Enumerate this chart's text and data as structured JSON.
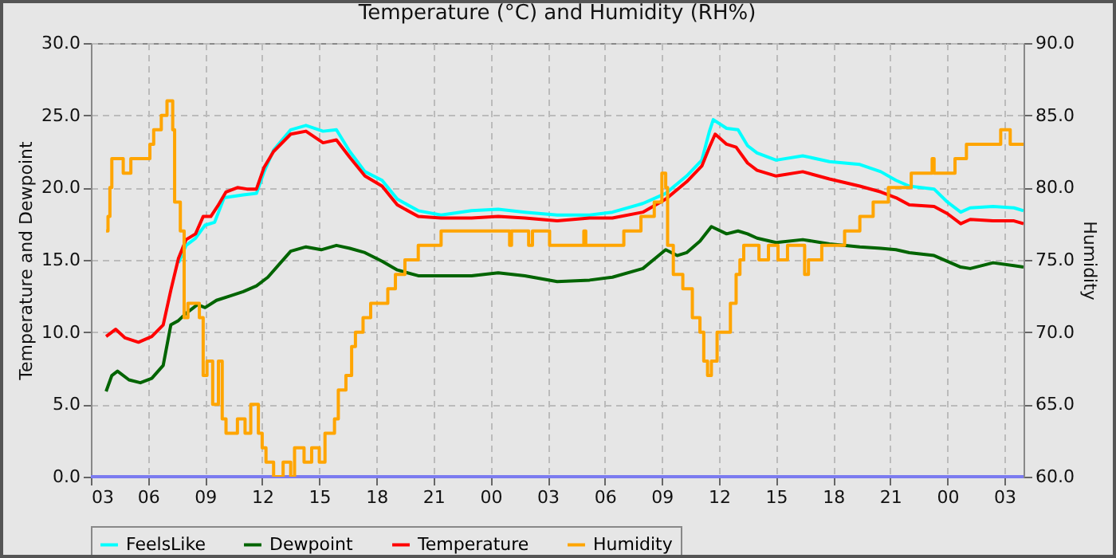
{
  "chart_data": {
    "type": "line",
    "title": "Temperature (°C) and Humidity (RH%)",
    "ylabel": "Temperature and Dewpoint",
    "y2label": "Humidity",
    "xlim": [
      3,
      52
    ],
    "xticks": [
      {
        "value": 3,
        "label": "03"
      },
      {
        "value": 6,
        "label": "06"
      },
      {
        "value": 9,
        "label": "09"
      },
      {
        "value": 12,
        "label": "12"
      },
      {
        "value": 15,
        "label": "15"
      },
      {
        "value": 18,
        "label": "18"
      },
      {
        "value": 21,
        "label": "21"
      },
      {
        "value": 24,
        "label": "00"
      },
      {
        "value": 27,
        "label": "03"
      },
      {
        "value": 30,
        "label": "06"
      },
      {
        "value": 33,
        "label": "09"
      },
      {
        "value": 36,
        "label": "12"
      },
      {
        "value": 39,
        "label": "15"
      },
      {
        "value": 42,
        "label": "18"
      },
      {
        "value": 45,
        "label": "21"
      },
      {
        "value": 48,
        "label": "00"
      },
      {
        "value": 51,
        "label": "03"
      }
    ],
    "ylim": [
      0,
      30
    ],
    "yticks": [
      {
        "value": 0,
        "label": "0.0"
      },
      {
        "value": 5,
        "label": "5.0"
      },
      {
        "value": 10,
        "label": "10.0"
      },
      {
        "value": 15,
        "label": "15.0"
      },
      {
        "value": 20,
        "label": "20.0"
      },
      {
        "value": 25,
        "label": "25.0"
      },
      {
        "value": 30,
        "label": "30.0"
      }
    ],
    "y2lim": [
      60,
      90
    ],
    "y2ticks": [
      {
        "value": 60,
        "label": "60.0"
      },
      {
        "value": 65,
        "label": "65.0"
      },
      {
        "value": 70,
        "label": "70.0"
      },
      {
        "value": 75,
        "label": "75.0"
      },
      {
        "value": 80,
        "label": "80.0"
      },
      {
        "value": 85,
        "label": "85.0"
      },
      {
        "value": 90,
        "label": "90.0"
      }
    ],
    "grid": true,
    "legend": "bottom",
    "marker": "none",
    "line_style": "solid",
    "ref_lines": [
      {
        "axis": "y",
        "value": 0,
        "color": "#7b7bf0"
      }
    ],
    "series": [
      {
        "name": "FeelsLike",
        "color": "#00ffff",
        "x": [
          7.6,
          8.0,
          8.5,
          9.0,
          9.5,
          10.0,
          11.0,
          11.7,
          12.1,
          12.6,
          13.5,
          14.3,
          15.2,
          15.9,
          16.6,
          17.4,
          18.3,
          19.1,
          20.2,
          21.4,
          23.0,
          24.4,
          25.8,
          27.5,
          29.2,
          30.4,
          32.0,
          33.2,
          34.3,
          35.1,
          35.5,
          35.7,
          36.4,
          37.0,
          37.5,
          38.0,
          39.0,
          40.4,
          41.8,
          43.4,
          44.5,
          45.3,
          46.0,
          47.3,
          48.0,
          48.7,
          49.2,
          50.4,
          51.5,
          52.0
        ],
        "values": [
          14.8,
          16.0,
          16.5,
          17.4,
          17.6,
          19.3,
          19.5,
          19.6,
          21.1,
          22.6,
          24.0,
          24.3,
          23.9,
          24.0,
          22.5,
          21.1,
          20.5,
          19.2,
          18.4,
          18.1,
          18.4,
          18.5,
          18.3,
          18.1,
          18.1,
          18.3,
          18.9,
          19.6,
          20.8,
          21.9,
          23.9,
          24.7,
          24.1,
          24.0,
          22.9,
          22.4,
          21.9,
          22.2,
          21.8,
          21.6,
          21.1,
          20.5,
          20.1,
          19.9,
          19.0,
          18.3,
          18.6,
          18.7,
          18.6,
          18.4
        ]
      },
      {
        "name": "Dewpoint",
        "color": "#006400",
        "x": [
          3.8,
          4.1,
          4.4,
          5.0,
          5.6,
          6.2,
          6.8,
          7.2,
          7.6,
          8.0,
          8.6,
          9.0,
          9.6,
          10.3,
          11.0,
          11.7,
          12.3,
          12.9,
          13.5,
          14.3,
          15.1,
          15.9,
          16.6,
          17.4,
          18.3,
          19.1,
          20.2,
          21.4,
          23.0,
          24.4,
          25.8,
          27.5,
          29.2,
          30.4,
          32.0,
          33.2,
          33.8,
          34.3,
          35.0,
          35.6,
          36.4,
          37.0,
          37.5,
          38.0,
          39.0,
          40.4,
          41.8,
          43.4,
          44.5,
          45.3,
          46.0,
          47.3,
          48.0,
          48.7,
          49.2,
          50.4,
          51.5,
          52.0
        ],
        "values": [
          5.9,
          7.0,
          7.3,
          6.7,
          6.5,
          6.8,
          7.7,
          10.5,
          10.8,
          11.3,
          11.9,
          11.7,
          12.2,
          12.5,
          12.8,
          13.2,
          13.8,
          14.7,
          15.6,
          15.9,
          15.7,
          16.0,
          15.8,
          15.5,
          14.9,
          14.3,
          13.9,
          13.9,
          13.9,
          14.1,
          13.9,
          13.5,
          13.6,
          13.8,
          14.4,
          15.7,
          15.3,
          15.5,
          16.3,
          17.3,
          16.8,
          17.0,
          16.8,
          16.5,
          16.2,
          16.4,
          16.1,
          15.9,
          15.8,
          15.7,
          15.5,
          15.3,
          14.9,
          14.5,
          14.4,
          14.8,
          14.6,
          14.5
        ]
      },
      {
        "name": "Temperature",
        "color": "#ff0000",
        "x": [
          3.8,
          4.3,
          4.8,
          5.5,
          6.2,
          6.8,
          7.2,
          7.6,
          8.0,
          8.5,
          8.9,
          9.3,
          9.7,
          10.1,
          10.7,
          11.2,
          11.7,
          12.1,
          12.6,
          13.5,
          14.3,
          15.2,
          15.9,
          16.6,
          17.4,
          18.3,
          19.1,
          20.2,
          21.4,
          23.0,
          24.4,
          25.8,
          27.5,
          29.2,
          30.4,
          32.0,
          33.2,
          34.3,
          35.1,
          35.5,
          35.8,
          36.4,
          36.9,
          37.5,
          38.0,
          39.0,
          40.4,
          41.8,
          43.4,
          44.5,
          45.3,
          46.0,
          47.3,
          48.0,
          48.7,
          49.2,
          50.4,
          51.5,
          52.0
        ],
        "values": [
          9.7,
          10.2,
          9.6,
          9.3,
          9.7,
          10.5,
          12.9,
          15.1,
          16.4,
          16.8,
          18.0,
          18.0,
          18.8,
          19.7,
          20.0,
          19.9,
          19.9,
          21.4,
          22.5,
          23.7,
          23.9,
          23.1,
          23.3,
          22.1,
          20.8,
          20.1,
          18.8,
          18.0,
          17.9,
          17.9,
          18.0,
          17.9,
          17.7,
          17.9,
          17.9,
          18.3,
          19.2,
          20.4,
          21.5,
          22.8,
          23.7,
          23.0,
          22.8,
          21.7,
          21.2,
          20.8,
          21.1,
          20.6,
          20.1,
          19.7,
          19.3,
          18.8,
          18.7,
          18.2,
          17.5,
          17.8,
          17.7,
          17.7,
          17.5
        ]
      },
      {
        "name": "Humidity",
        "type": "step",
        "axis": "y2",
        "color": "#ffa500",
        "x": [
          3.8,
          3.9,
          4.0,
          4.1,
          4.7,
          5.1,
          6.1,
          6.3,
          6.7,
          7.0,
          7.3,
          7.4,
          7.7,
          7.9,
          8.1,
          8.7,
          8.9,
          9.1,
          9.4,
          9.7,
          9.9,
          10.1,
          10.7,
          11.1,
          11.4,
          11.8,
          12.0,
          12.2,
          12.6,
          13.1,
          13.5,
          13.7,
          14.2,
          14.6,
          15.0,
          15.3,
          15.8,
          16.0,
          16.4,
          16.7,
          16.9,
          17.3,
          17.7,
          18.6,
          19.0,
          19.5,
          20.2,
          21.4,
          25.0,
          25.1,
          26.0,
          26.2,
          27.1,
          28.9,
          29.0,
          31.0,
          31.9,
          32.6,
          33.0,
          33.2,
          33.3,
          33.6,
          34.1,
          34.6,
          35.0,
          35.2,
          35.4,
          35.6,
          35.9,
          36.6,
          36.9,
          37.1,
          37.3,
          38.1,
          38.6,
          39.1,
          39.6,
          40.5,
          40.7,
          41.4,
          42.6,
          43.4,
          44.1,
          44.9,
          46.1,
          47.2,
          47.3,
          48.4,
          49.0,
          50.8,
          51.3,
          52.0
        ],
        "values": [
          77,
          78,
          80,
          82,
          81,
          82,
          83,
          84,
          85,
          86,
          84,
          79,
          77,
          71,
          72,
          71,
          67,
          68,
          65,
          68,
          64,
          63,
          64,
          63,
          65,
          63,
          62,
          61,
          60,
          61,
          60,
          62,
          61,
          62,
          61,
          63,
          64,
          66,
          67,
          69,
          70,
          71,
          72,
          73,
          74,
          75,
          76,
          77,
          76,
          77,
          76,
          77,
          76,
          77,
          76,
          77,
          78,
          79,
          81,
          80,
          76,
          74,
          73,
          71,
          70,
          68,
          67,
          68,
          70,
          72,
          74,
          75,
          76,
          75,
          76,
          75,
          76,
          74,
          75,
          76,
          77,
          78,
          79,
          80,
          81,
          82,
          81,
          82,
          83,
          84,
          83,
          83
        ]
      }
    ]
  }
}
